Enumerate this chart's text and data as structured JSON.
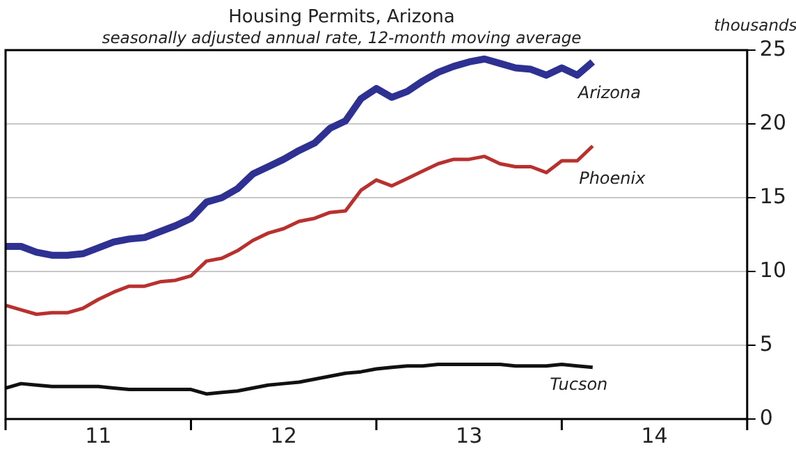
{
  "chart_data": {
    "type": "line",
    "title": "Housing Permits, Arizona",
    "subtitle": "seasonally adjusted annual rate, 12-month moving average",
    "ylabel": "thousands",
    "x": [
      "2011-01",
      "2011-02",
      "2011-03",
      "2011-04",
      "2011-05",
      "2011-06",
      "2011-07",
      "2011-08",
      "2011-09",
      "2011-10",
      "2011-11",
      "2011-12",
      "2012-01",
      "2012-02",
      "2012-03",
      "2012-04",
      "2012-05",
      "2012-06",
      "2012-07",
      "2012-08",
      "2012-09",
      "2012-10",
      "2012-11",
      "2012-12",
      "2013-01",
      "2013-02",
      "2013-03",
      "2013-04",
      "2013-05",
      "2013-06",
      "2013-07",
      "2013-08",
      "2013-09",
      "2013-10",
      "2013-11",
      "2013-12",
      "2014-01",
      "2014-02",
      "2014-03"
    ],
    "series": [
      {
        "name": "Arizona",
        "color": "#2e3192",
        "values": [
          11.7,
          11.7,
          11.3,
          11.1,
          11.1,
          11.2,
          11.6,
          12.0,
          12.2,
          12.3,
          12.7,
          13.1,
          13.6,
          14.7,
          15.0,
          15.6,
          16.6,
          17.1,
          17.6,
          18.2,
          18.7,
          19.7,
          20.2,
          21.7,
          22.4,
          21.8,
          22.2,
          22.9,
          23.5,
          23.9,
          24.2,
          24.4,
          24.1,
          23.8,
          23.7,
          23.3,
          23.8,
          23.3,
          24.2
        ]
      },
      {
        "name": "Phoenix",
        "color": "#b8312f",
        "values": [
          7.7,
          7.4,
          7.1,
          7.2,
          7.2,
          7.5,
          8.1,
          8.6,
          9.0,
          9.0,
          9.3,
          9.4,
          9.7,
          10.7,
          10.9,
          11.4,
          12.1,
          12.6,
          12.9,
          13.4,
          13.6,
          14.0,
          14.1,
          15.5,
          16.2,
          15.8,
          16.3,
          16.8,
          17.3,
          17.6,
          17.6,
          17.8,
          17.3,
          17.1,
          17.1,
          16.7,
          17.5,
          17.5,
          18.5
        ]
      },
      {
        "name": "Tucson",
        "color": "#111111",
        "values": [
          2.1,
          2.4,
          2.3,
          2.2,
          2.2,
          2.2,
          2.2,
          2.1,
          2.0,
          2.0,
          2.0,
          2.0,
          2.0,
          1.7,
          1.8,
          1.9,
          2.1,
          2.3,
          2.4,
          2.5,
          2.7,
          2.9,
          3.1,
          3.2,
          3.4,
          3.5,
          3.6,
          3.6,
          3.7,
          3.7,
          3.7,
          3.7,
          3.7,
          3.6,
          3.6,
          3.6,
          3.7,
          3.6,
          3.5
        ]
      }
    ],
    "xlim": [
      "2011-01",
      "2015-01"
    ],
    "xticks": [
      {
        "value": "2011-01",
        "label": null
      },
      {
        "value": "2011-07",
        "label": "11"
      },
      {
        "value": "2012-01",
        "label": null
      },
      {
        "value": "2012-07",
        "label": "12"
      },
      {
        "value": "2013-01",
        "label": null
      },
      {
        "value": "2013-07",
        "label": "13"
      },
      {
        "value": "2014-01",
        "label": null
      },
      {
        "value": "2014-07",
        "label": "14"
      },
      {
        "value": "2015-01",
        "label": null
      }
    ],
    "ylim": [
      0,
      25
    ],
    "yticks": [
      0,
      5,
      10,
      15,
      20,
      25
    ],
    "grid": "y",
    "legend": false,
    "marker": "none",
    "line_style": "solid"
  }
}
